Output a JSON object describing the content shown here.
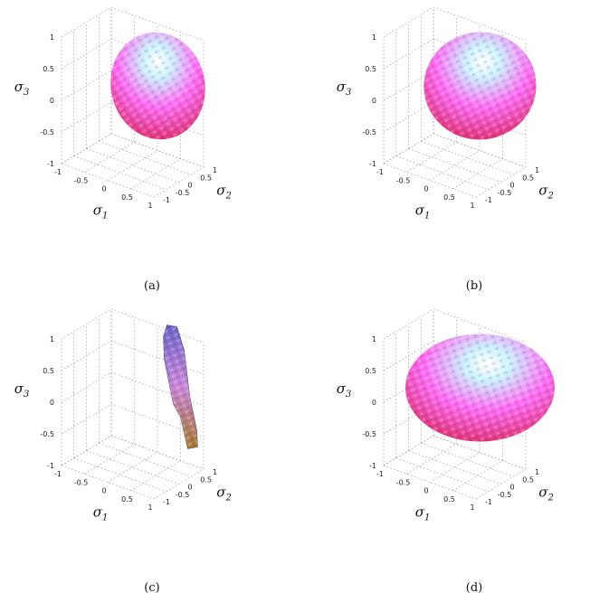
{
  "chart_data": [
    {
      "panel_label": "(a)",
      "type": "surface3d",
      "xlabel": "σ",
      "xlabel_sub": "1",
      "ylabel": "σ",
      "ylabel_sub": "2",
      "zlabel": "σ",
      "zlabel_sub": "3",
      "xticks": [
        "-1",
        "-0.5",
        "0",
        "0.5",
        "1"
      ],
      "yticks": [
        "-1",
        "-0.5",
        "0",
        "0.5",
        "1"
      ],
      "zticks": [
        "1",
        "0.5",
        "0",
        "-0.5",
        "-1"
      ],
      "xlim": [
        -1,
        1
      ],
      "ylim": [
        -1,
        1
      ],
      "zlim": [
        -1,
        1
      ],
      "grid": true,
      "shape": "ellipsoid",
      "radii_data_units": [
        0.45,
        0.32,
        0.85
      ],
      "tilt_deg": -12
    },
    {
      "panel_label": "(b)",
      "type": "surface3d",
      "xlabel": "σ",
      "xlabel_sub": "1",
      "ylabel": "σ",
      "ylabel_sub": "2",
      "zlabel": "σ",
      "zlabel_sub": "3",
      "xticks": [
        "-1",
        "-0.5",
        "0",
        "0.5",
        "1"
      ],
      "yticks": [
        "-1",
        "-0.5",
        "0",
        "0.5",
        "1"
      ],
      "zticks": [
        "1",
        "0.5",
        "0",
        "-0.5",
        "-1"
      ],
      "xlim": [
        -1,
        1
      ],
      "ylim": [
        -1,
        1
      ],
      "zlim": [
        -1,
        1
      ],
      "grid": true,
      "shape": "ellipsoid",
      "radii_data_units": [
        0.55,
        0.4,
        0.85
      ],
      "tilt_deg": -6
    },
    {
      "panel_label": "(c)",
      "type": "surface3d",
      "xlabel": "σ",
      "xlabel_sub": "1",
      "ylabel": "σ",
      "ylabel_sub": "2",
      "zlabel": "σ",
      "zlabel_sub": "3",
      "xticks": [
        "-1",
        "-0.5",
        "0",
        "0.5",
        "1"
      ],
      "yticks": [
        "-1",
        "-0.5",
        "0",
        "0.5",
        "1"
      ],
      "zticks": [
        "1",
        "0.5",
        "0",
        "-0.5",
        "-1"
      ],
      "xlim": [
        -1,
        1
      ],
      "ylim": [
        -1,
        1
      ],
      "zlim": [
        -1,
        1
      ],
      "grid": true,
      "shape": "thin-sliver",
      "radii_data_units": [
        0.08,
        0.05,
        0.85
      ],
      "tilt_deg": -10
    },
    {
      "panel_label": "(d)",
      "type": "surface3d",
      "xlabel": "σ",
      "xlabel_sub": "1",
      "ylabel": "σ",
      "ylabel_sub": "2",
      "zlabel": "σ",
      "zlabel_sub": "3",
      "xticks": [
        "-1",
        "-0.5",
        "0",
        "0.5",
        "1"
      ],
      "yticks": [
        "-1",
        "-0.5",
        "0",
        "0.5",
        "1"
      ],
      "zticks": [
        "1",
        "0.5",
        "0",
        "-0.5",
        "-1"
      ],
      "xlim": [
        -1,
        1
      ],
      "ylim": [
        -1,
        1
      ],
      "zlim": [
        -1,
        1
      ],
      "grid": true,
      "shape": "ellipsoid",
      "radii_data_units": [
        0.75,
        0.6,
        0.85
      ],
      "tilt_deg": 0
    }
  ],
  "colors": {
    "surface_top": "#c9f2ff",
    "surface_mid": "#ff6cf5",
    "surface_low": "#e0357a",
    "sliver_top": "#6a66c8",
    "sliver_bottom": "#a47a2a",
    "grid": "#8a8a8a"
  }
}
